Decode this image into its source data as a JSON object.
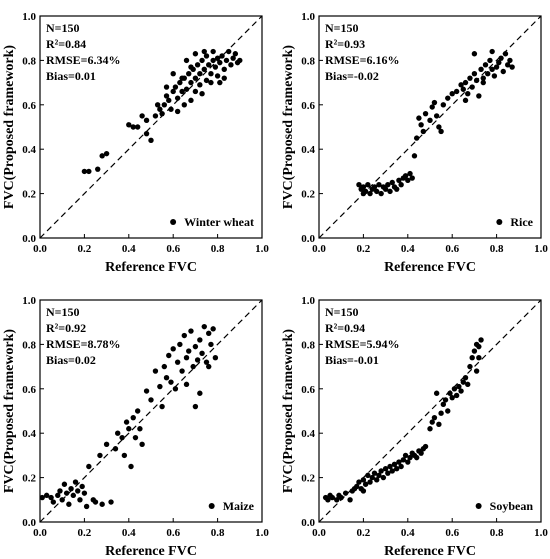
{
  "chart_data": [
    {
      "type": "scatter",
      "xlabel": "Reference FVC",
      "ylabel": "FVC(Proposed framework)",
      "xlim": [
        0.0,
        1.0
      ],
      "ylim": [
        0.0,
        1.0
      ],
      "xticks": [
        "0.0",
        "0.2",
        "0.4",
        "0.6",
        "0.8",
        "1.0"
      ],
      "yticks": [
        "0.0",
        "0.2",
        "0.4",
        "0.6",
        "0.8",
        "1.0"
      ],
      "stats": [
        "N=150",
        "R²=0.84",
        "RMSE=6.34%",
        "Bias=0.01"
      ],
      "legend": "Winter wheat",
      "legend_position": "bottom-right",
      "reference_line": "1:1 dashed",
      "points": [
        [
          0.2,
          0.3
        ],
        [
          0.22,
          0.3
        ],
        [
          0.26,
          0.31
        ],
        [
          0.28,
          0.37
        ],
        [
          0.3,
          0.38
        ],
        [
          0.4,
          0.51
        ],
        [
          0.42,
          0.5
        ],
        [
          0.44,
          0.5
        ],
        [
          0.46,
          0.55
        ],
        [
          0.48,
          0.53
        ],
        [
          0.48,
          0.47
        ],
        [
          0.5,
          0.44
        ],
        [
          0.52,
          0.55
        ],
        [
          0.54,
          0.58
        ],
        [
          0.55,
          0.56
        ],
        [
          0.56,
          0.6
        ],
        [
          0.57,
          0.64
        ],
        [
          0.58,
          0.62
        ],
        [
          0.59,
          0.58
        ],
        [
          0.6,
          0.66
        ],
        [
          0.61,
          0.68
        ],
        [
          0.62,
          0.63
        ],
        [
          0.62,
          0.57
        ],
        [
          0.63,
          0.7
        ],
        [
          0.64,
          0.66
        ],
        [
          0.65,
          0.6
        ],
        [
          0.65,
          0.72
        ],
        [
          0.66,
          0.67
        ],
        [
          0.67,
          0.74
        ],
        [
          0.68,
          0.7
        ],
        [
          0.68,
          0.62
        ],
        [
          0.69,
          0.76
        ],
        [
          0.7,
          0.72
        ],
        [
          0.7,
          0.66
        ],
        [
          0.71,
          0.78
        ],
        [
          0.72,
          0.74
        ],
        [
          0.72,
          0.69
        ],
        [
          0.73,
          0.8
        ],
        [
          0.74,
          0.76
        ],
        [
          0.75,
          0.71
        ],
        [
          0.75,
          0.82
        ],
        [
          0.76,
          0.78
        ],
        [
          0.77,
          0.74
        ],
        [
          0.78,
          0.8
        ],
        [
          0.78,
          0.84
        ],
        [
          0.79,
          0.77
        ],
        [
          0.8,
          0.81
        ],
        [
          0.8,
          0.73
        ],
        [
          0.81,
          0.79
        ],
        [
          0.82,
          0.82
        ],
        [
          0.83,
          0.76
        ],
        [
          0.84,
          0.8
        ],
        [
          0.85,
          0.84
        ],
        [
          0.86,
          0.78
        ],
        [
          0.87,
          0.81
        ],
        [
          0.88,
          0.83
        ],
        [
          0.89,
          0.79
        ],
        [
          0.9,
          0.8
        ],
        [
          0.66,
          0.8
        ],
        [
          0.7,
          0.83
        ],
        [
          0.74,
          0.84
        ],
        [
          0.6,
          0.74
        ],
        [
          0.57,
          0.68
        ],
        [
          0.53,
          0.6
        ],
        [
          0.77,
          0.7
        ],
        [
          0.81,
          0.7
        ],
        [
          0.83,
          0.72
        ],
        [
          0.73,
          0.65
        ],
        [
          0.64,
          0.72
        ],
        [
          0.68,
          0.77
        ]
      ]
    },
    {
      "type": "scatter",
      "xlabel": "Reference FVC",
      "ylabel": "FVC(Proposed framework)",
      "xlim": [
        0.0,
        1.0
      ],
      "ylim": [
        0.0,
        1.0
      ],
      "xticks": [
        "0.0",
        "0.2",
        "0.4",
        "0.6",
        "0.8",
        "1.0"
      ],
      "yticks": [
        "0.0",
        "0.2",
        "0.4",
        "0.6",
        "0.8",
        "1.0"
      ],
      "stats": [
        "N=150",
        "R²=0.93",
        "RMSE=6.16%",
        "Bias=-0.02"
      ],
      "legend": "Rice",
      "legend_position": "bottom-right",
      "reference_line": "1:1 dashed",
      "points": [
        [
          0.18,
          0.24
        ],
        [
          0.19,
          0.22
        ],
        [
          0.2,
          0.2
        ],
        [
          0.2,
          0.23
        ],
        [
          0.21,
          0.21
        ],
        [
          0.22,
          0.24
        ],
        [
          0.23,
          0.2
        ],
        [
          0.24,
          0.22
        ],
        [
          0.25,
          0.23
        ],
        [
          0.26,
          0.21
        ],
        [
          0.27,
          0.24
        ],
        [
          0.28,
          0.2
        ],
        [
          0.29,
          0.23
        ],
        [
          0.3,
          0.22
        ],
        [
          0.31,
          0.24
        ],
        [
          0.32,
          0.21
        ],
        [
          0.33,
          0.25
        ],
        [
          0.34,
          0.23
        ],
        [
          0.35,
          0.22
        ],
        [
          0.36,
          0.26
        ],
        [
          0.37,
          0.24
        ],
        [
          0.38,
          0.27
        ],
        [
          0.39,
          0.28
        ],
        [
          0.4,
          0.26
        ],
        [
          0.41,
          0.29
        ],
        [
          0.42,
          0.27
        ],
        [
          0.43,
          0.37
        ],
        [
          0.44,
          0.45
        ],
        [
          0.45,
          0.54
        ],
        [
          0.46,
          0.51
        ],
        [
          0.47,
          0.48
        ],
        [
          0.48,
          0.56
        ],
        [
          0.5,
          0.53
        ],
        [
          0.51,
          0.59
        ],
        [
          0.52,
          0.61
        ],
        [
          0.53,
          0.55
        ],
        [
          0.54,
          0.5
        ],
        [
          0.55,
          0.48
        ],
        [
          0.56,
          0.6
        ],
        [
          0.58,
          0.63
        ],
        [
          0.6,
          0.65
        ],
        [
          0.62,
          0.66
        ],
        [
          0.64,
          0.69
        ],
        [
          0.65,
          0.67
        ],
        [
          0.66,
          0.7
        ],
        [
          0.67,
          0.65
        ],
        [
          0.68,
          0.72
        ],
        [
          0.69,
          0.68
        ],
        [
          0.7,
          0.74
        ],
        [
          0.71,
          0.71
        ],
        [
          0.72,
          0.64
        ],
        [
          0.73,
          0.76
        ],
        [
          0.74,
          0.72
        ],
        [
          0.75,
          0.78
        ],
        [
          0.76,
          0.74
        ],
        [
          0.77,
          0.8
        ],
        [
          0.78,
          0.76
        ],
        [
          0.79,
          0.73
        ],
        [
          0.8,
          0.77
        ],
        [
          0.81,
          0.79
        ],
        [
          0.82,
          0.81
        ],
        [
          0.83,
          0.75
        ],
        [
          0.84,
          0.83
        ],
        [
          0.85,
          0.78
        ],
        [
          0.86,
          0.8
        ],
        [
          0.87,
          0.77
        ],
        [
          0.7,
          0.83
        ],
        [
          0.74,
          0.7
        ],
        [
          0.66,
          0.62
        ],
        [
          0.78,
          0.84
        ]
      ]
    },
    {
      "type": "scatter",
      "xlabel": "Reference FVC",
      "ylabel": "FVC(Proposed framework)",
      "xlim": [
        0.0,
        1.0
      ],
      "ylim": [
        0.0,
        1.0
      ],
      "xticks": [
        "0.0",
        "0.2",
        "0.4",
        "0.6",
        "0.8",
        "1.0"
      ],
      "yticks": [
        "0.0",
        "0.2",
        "0.4",
        "0.6",
        "0.8",
        "1.0"
      ],
      "stats": [
        "N=150",
        "R²=0.92",
        "RMSE=8.78%",
        "Bias=0.02"
      ],
      "legend": "Maize",
      "legend_position": "bottom-right",
      "reference_line": "1:1 dashed",
      "points": [
        [
          0.01,
          0.11
        ],
        [
          0.03,
          0.12
        ],
        [
          0.05,
          0.11
        ],
        [
          0.06,
          0.09
        ],
        [
          0.08,
          0.12
        ],
        [
          0.09,
          0.14
        ],
        [
          0.1,
          0.1
        ],
        [
          0.11,
          0.17
        ],
        [
          0.12,
          0.13
        ],
        [
          0.13,
          0.08
        ],
        [
          0.14,
          0.15
        ],
        [
          0.15,
          0.12
        ],
        [
          0.16,
          0.18
        ],
        [
          0.17,
          0.14
        ],
        [
          0.18,
          0.1
        ],
        [
          0.19,
          0.16
        ],
        [
          0.2,
          0.13
        ],
        [
          0.21,
          0.07
        ],
        [
          0.22,
          0.25
        ],
        [
          0.24,
          0.1
        ],
        [
          0.25,
          0.09
        ],
        [
          0.27,
          0.3
        ],
        [
          0.28,
          0.08
        ],
        [
          0.3,
          0.35
        ],
        [
          0.32,
          0.09
        ],
        [
          0.34,
          0.33
        ],
        [
          0.35,
          0.4
        ],
        [
          0.37,
          0.38
        ],
        [
          0.38,
          0.3
        ],
        [
          0.39,
          0.45
        ],
        [
          0.4,
          0.42
        ],
        [
          0.41,
          0.25
        ],
        [
          0.42,
          0.47
        ],
        [
          0.43,
          0.38
        ],
        [
          0.44,
          0.5
        ],
        [
          0.45,
          0.42
        ],
        [
          0.46,
          0.35
        ],
        [
          0.48,
          0.59
        ],
        [
          0.5,
          0.55
        ],
        [
          0.52,
          0.68
        ],
        [
          0.54,
          0.61
        ],
        [
          0.55,
          0.52
        ],
        [
          0.56,
          0.7
        ],
        [
          0.57,
          0.65
        ],
        [
          0.58,
          0.75
        ],
        [
          0.59,
          0.63
        ],
        [
          0.6,
          0.78
        ],
        [
          0.61,
          0.6
        ],
        [
          0.62,
          0.72
        ],
        [
          0.63,
          0.8
        ],
        [
          0.64,
          0.68
        ],
        [
          0.65,
          0.84
        ],
        [
          0.66,
          0.74
        ],
        [
          0.67,
          0.77
        ],
        [
          0.68,
          0.86
        ],
        [
          0.69,
          0.7
        ],
        [
          0.7,
          0.79
        ],
        [
          0.71,
          0.73
        ],
        [
          0.72,
          0.82
        ],
        [
          0.73,
          0.76
        ],
        [
          0.74,
          0.88
        ],
        [
          0.75,
          0.72
        ],
        [
          0.76,
          0.85
        ],
        [
          0.77,
          0.8
        ],
        [
          0.78,
          0.87
        ],
        [
          0.79,
          0.74
        ],
        [
          0.7,
          0.52
        ],
        [
          0.72,
          0.58
        ],
        [
          0.66,
          0.62
        ],
        [
          0.76,
          0.7
        ]
      ]
    },
    {
      "type": "scatter",
      "xlabel": "Reference FVC",
      "ylabel": "FVC(Proposed framework)",
      "xlim": [
        0.0,
        1.0
      ],
      "ylim": [
        0.0,
        1.0
      ],
      "xticks": [
        "0.0",
        "0.2",
        "0.4",
        "0.6",
        "0.8",
        "1.0"
      ],
      "yticks": [
        "0.0",
        "0.2",
        "0.4",
        "0.6",
        "0.8",
        "1.0"
      ],
      "stats": [
        "N=150",
        "R²=0.94",
        "RMSE=5.94%",
        "Bias=-0.01"
      ],
      "legend": "Soybean",
      "legend_position": "bottom-right",
      "reference_line": "1:1 dashed",
      "points": [
        [
          0.03,
          0.11
        ],
        [
          0.04,
          0.1
        ],
        [
          0.05,
          0.12
        ],
        [
          0.06,
          0.11
        ],
        [
          0.08,
          0.1
        ],
        [
          0.09,
          0.12
        ],
        [
          0.1,
          0.11
        ],
        [
          0.12,
          0.13
        ],
        [
          0.14,
          0.1
        ],
        [
          0.15,
          0.14
        ],
        [
          0.16,
          0.15
        ],
        [
          0.17,
          0.16
        ],
        [
          0.18,
          0.18
        ],
        [
          0.19,
          0.15
        ],
        [
          0.2,
          0.19
        ],
        [
          0.21,
          0.17
        ],
        [
          0.22,
          0.21
        ],
        [
          0.23,
          0.18
        ],
        [
          0.24,
          0.2
        ],
        [
          0.25,
          0.22
        ],
        [
          0.26,
          0.19
        ],
        [
          0.27,
          0.21
        ],
        [
          0.28,
          0.23
        ],
        [
          0.29,
          0.2
        ],
        [
          0.3,
          0.24
        ],
        [
          0.31,
          0.22
        ],
        [
          0.32,
          0.25
        ],
        [
          0.33,
          0.23
        ],
        [
          0.34,
          0.26
        ],
        [
          0.35,
          0.24
        ],
        [
          0.36,
          0.27
        ],
        [
          0.37,
          0.25
        ],
        [
          0.38,
          0.28
        ],
        [
          0.39,
          0.3
        ],
        [
          0.4,
          0.27
        ],
        [
          0.41,
          0.29
        ],
        [
          0.42,
          0.31
        ],
        [
          0.43,
          0.3
        ],
        [
          0.44,
          0.29
        ],
        [
          0.45,
          0.32
        ],
        [
          0.46,
          0.31
        ],
        [
          0.47,
          0.33
        ],
        [
          0.5,
          0.42
        ],
        [
          0.51,
          0.45
        ],
        [
          0.52,
          0.47
        ],
        [
          0.54,
          0.44
        ],
        [
          0.56,
          0.53
        ],
        [
          0.57,
          0.55
        ],
        [
          0.58,
          0.5
        ],
        [
          0.59,
          0.58
        ],
        [
          0.6,
          0.56
        ],
        [
          0.61,
          0.6
        ],
        [
          0.62,
          0.57
        ],
        [
          0.63,
          0.61
        ],
        [
          0.64,
          0.59
        ],
        [
          0.65,
          0.63
        ],
        [
          0.66,
          0.65
        ],
        [
          0.67,
          0.62
        ],
        [
          0.68,
          0.7
        ],
        [
          0.69,
          0.74
        ],
        [
          0.7,
          0.77
        ],
        [
          0.71,
          0.8
        ],
        [
          0.72,
          0.79
        ],
        [
          0.73,
          0.82
        ],
        [
          0.72,
          0.74
        ],
        [
          0.71,
          0.68
        ],
        [
          0.53,
          0.58
        ],
        [
          0.55,
          0.49
        ],
        [
          0.48,
          0.34
        ],
        [
          0.2,
          0.14
        ]
      ]
    }
  ]
}
